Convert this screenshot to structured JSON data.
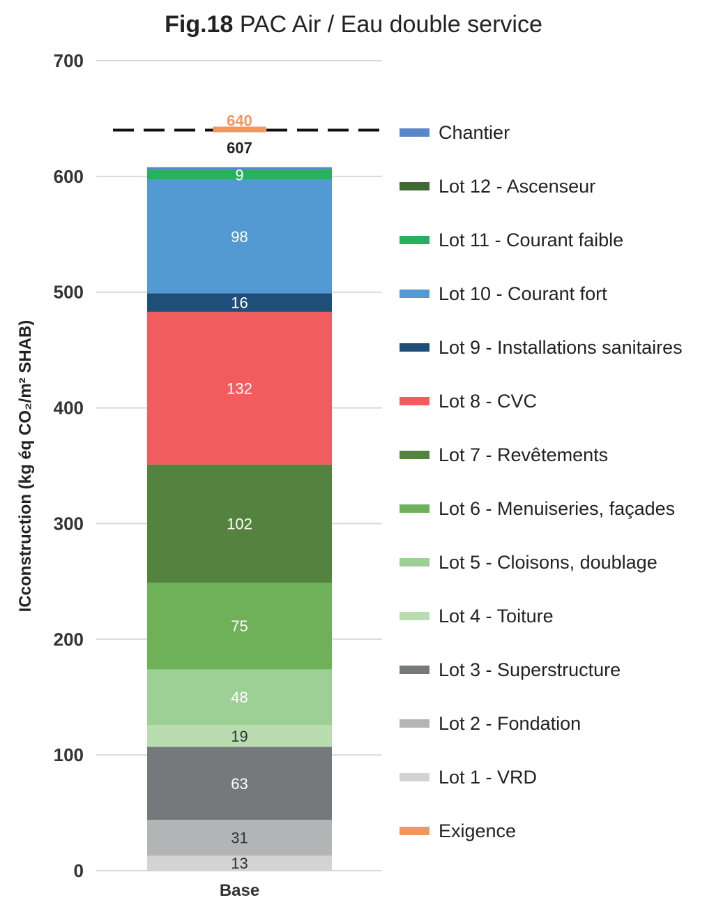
{
  "title_prefix": "Fig.18",
  "title": "PAC Air / Eau double service",
  "chart_data": {
    "type": "bar",
    "stacked": true,
    "categories": [
      "Base"
    ],
    "ylabel": "ICconstruction (kg éq CO₂/m² SHAB)",
    "ylim": [
      0,
      700
    ],
    "yticks": [
      0,
      100,
      200,
      300,
      400,
      500,
      600,
      700
    ],
    "grid": true,
    "legend_position": "right",
    "total_label": "607",
    "series": [
      {
        "name": "Lot 1 - VRD",
        "values": [
          13
        ],
        "label": "13",
        "color": "#d2d3d2",
        "label_color": "#333333"
      },
      {
        "name": "Lot 2 - Fondation",
        "values": [
          31
        ],
        "label": "31",
        "color": "#b3b4b5",
        "label_color": "#333333"
      },
      {
        "name": "Lot 3 - Superstructure",
        "values": [
          63
        ],
        "label": "63",
        "color": "#76797b",
        "label_color": "#ffffff"
      },
      {
        "name": "Lot 4 - Toiture",
        "values": [
          19
        ],
        "label": "19",
        "color": "#b9dcb0",
        "label_color": "#333333"
      },
      {
        "name": "Lot 5 - Cloisons, doublage",
        "values": [
          48
        ],
        "label": "48",
        "color": "#9dd094",
        "label_color": "#ffffff"
      },
      {
        "name": "Lot 6 - Menuiseries, façades",
        "values": [
          75
        ],
        "label": "75",
        "color": "#6eb159",
        "label_color": "#ffffff"
      },
      {
        "name": "Lot 7 - Revêtements",
        "values": [
          102
        ],
        "label": "102",
        "color": "#53833f",
        "label_color": "#ffffff"
      },
      {
        "name": "Lot 8 - CVC",
        "values": [
          132
        ],
        "label": "132",
        "color": "#f15d5e",
        "label_color": "#ffffff"
      },
      {
        "name": "Lot 9 - Installations sanitaires",
        "values": [
          16
        ],
        "label": "16",
        "color": "#1f4e79",
        "label_color": "#ffffff"
      },
      {
        "name": "Lot 10 - Courant fort",
        "values": [
          98
        ],
        "label": "98",
        "color": "#539ad4",
        "label_color": "#ffffff"
      },
      {
        "name": "Lot 11 - Courant faible",
        "values": [
          9
        ],
        "label": "9",
        "color": "#27b15e",
        "label_color": "#ffffff"
      },
      {
        "name": "Lot 12 - Ascenseur",
        "values": [
          0
        ],
        "label": "",
        "color": "#3f6a35",
        "label_color": "#ffffff"
      },
      {
        "name": "Chantier",
        "values": [
          2
        ],
        "label": "",
        "color": "#5b86c8",
        "label_color": "#ffffff"
      }
    ],
    "requirement": {
      "name": "Exigence",
      "value": 640,
      "label": "640",
      "color": "#f3965e"
    },
    "legend_order": [
      "Chantier",
      "Lot 12 - Ascenseur",
      "Lot 11 - Courant faible",
      "Lot 10 - Courant fort",
      "Lot 9 - Installations sanitaires",
      "Lot 8 - CVC",
      "Lot 7 - Revêtements",
      "Lot 6 - Menuiseries, façades",
      "Lot 5 - Cloisons, doublage",
      "Lot 4 - Toiture",
      "Lot 3 - Superstructure",
      "Lot 2 - Fondation",
      "Lot 1 - VRD",
      "Exigence"
    ]
  }
}
